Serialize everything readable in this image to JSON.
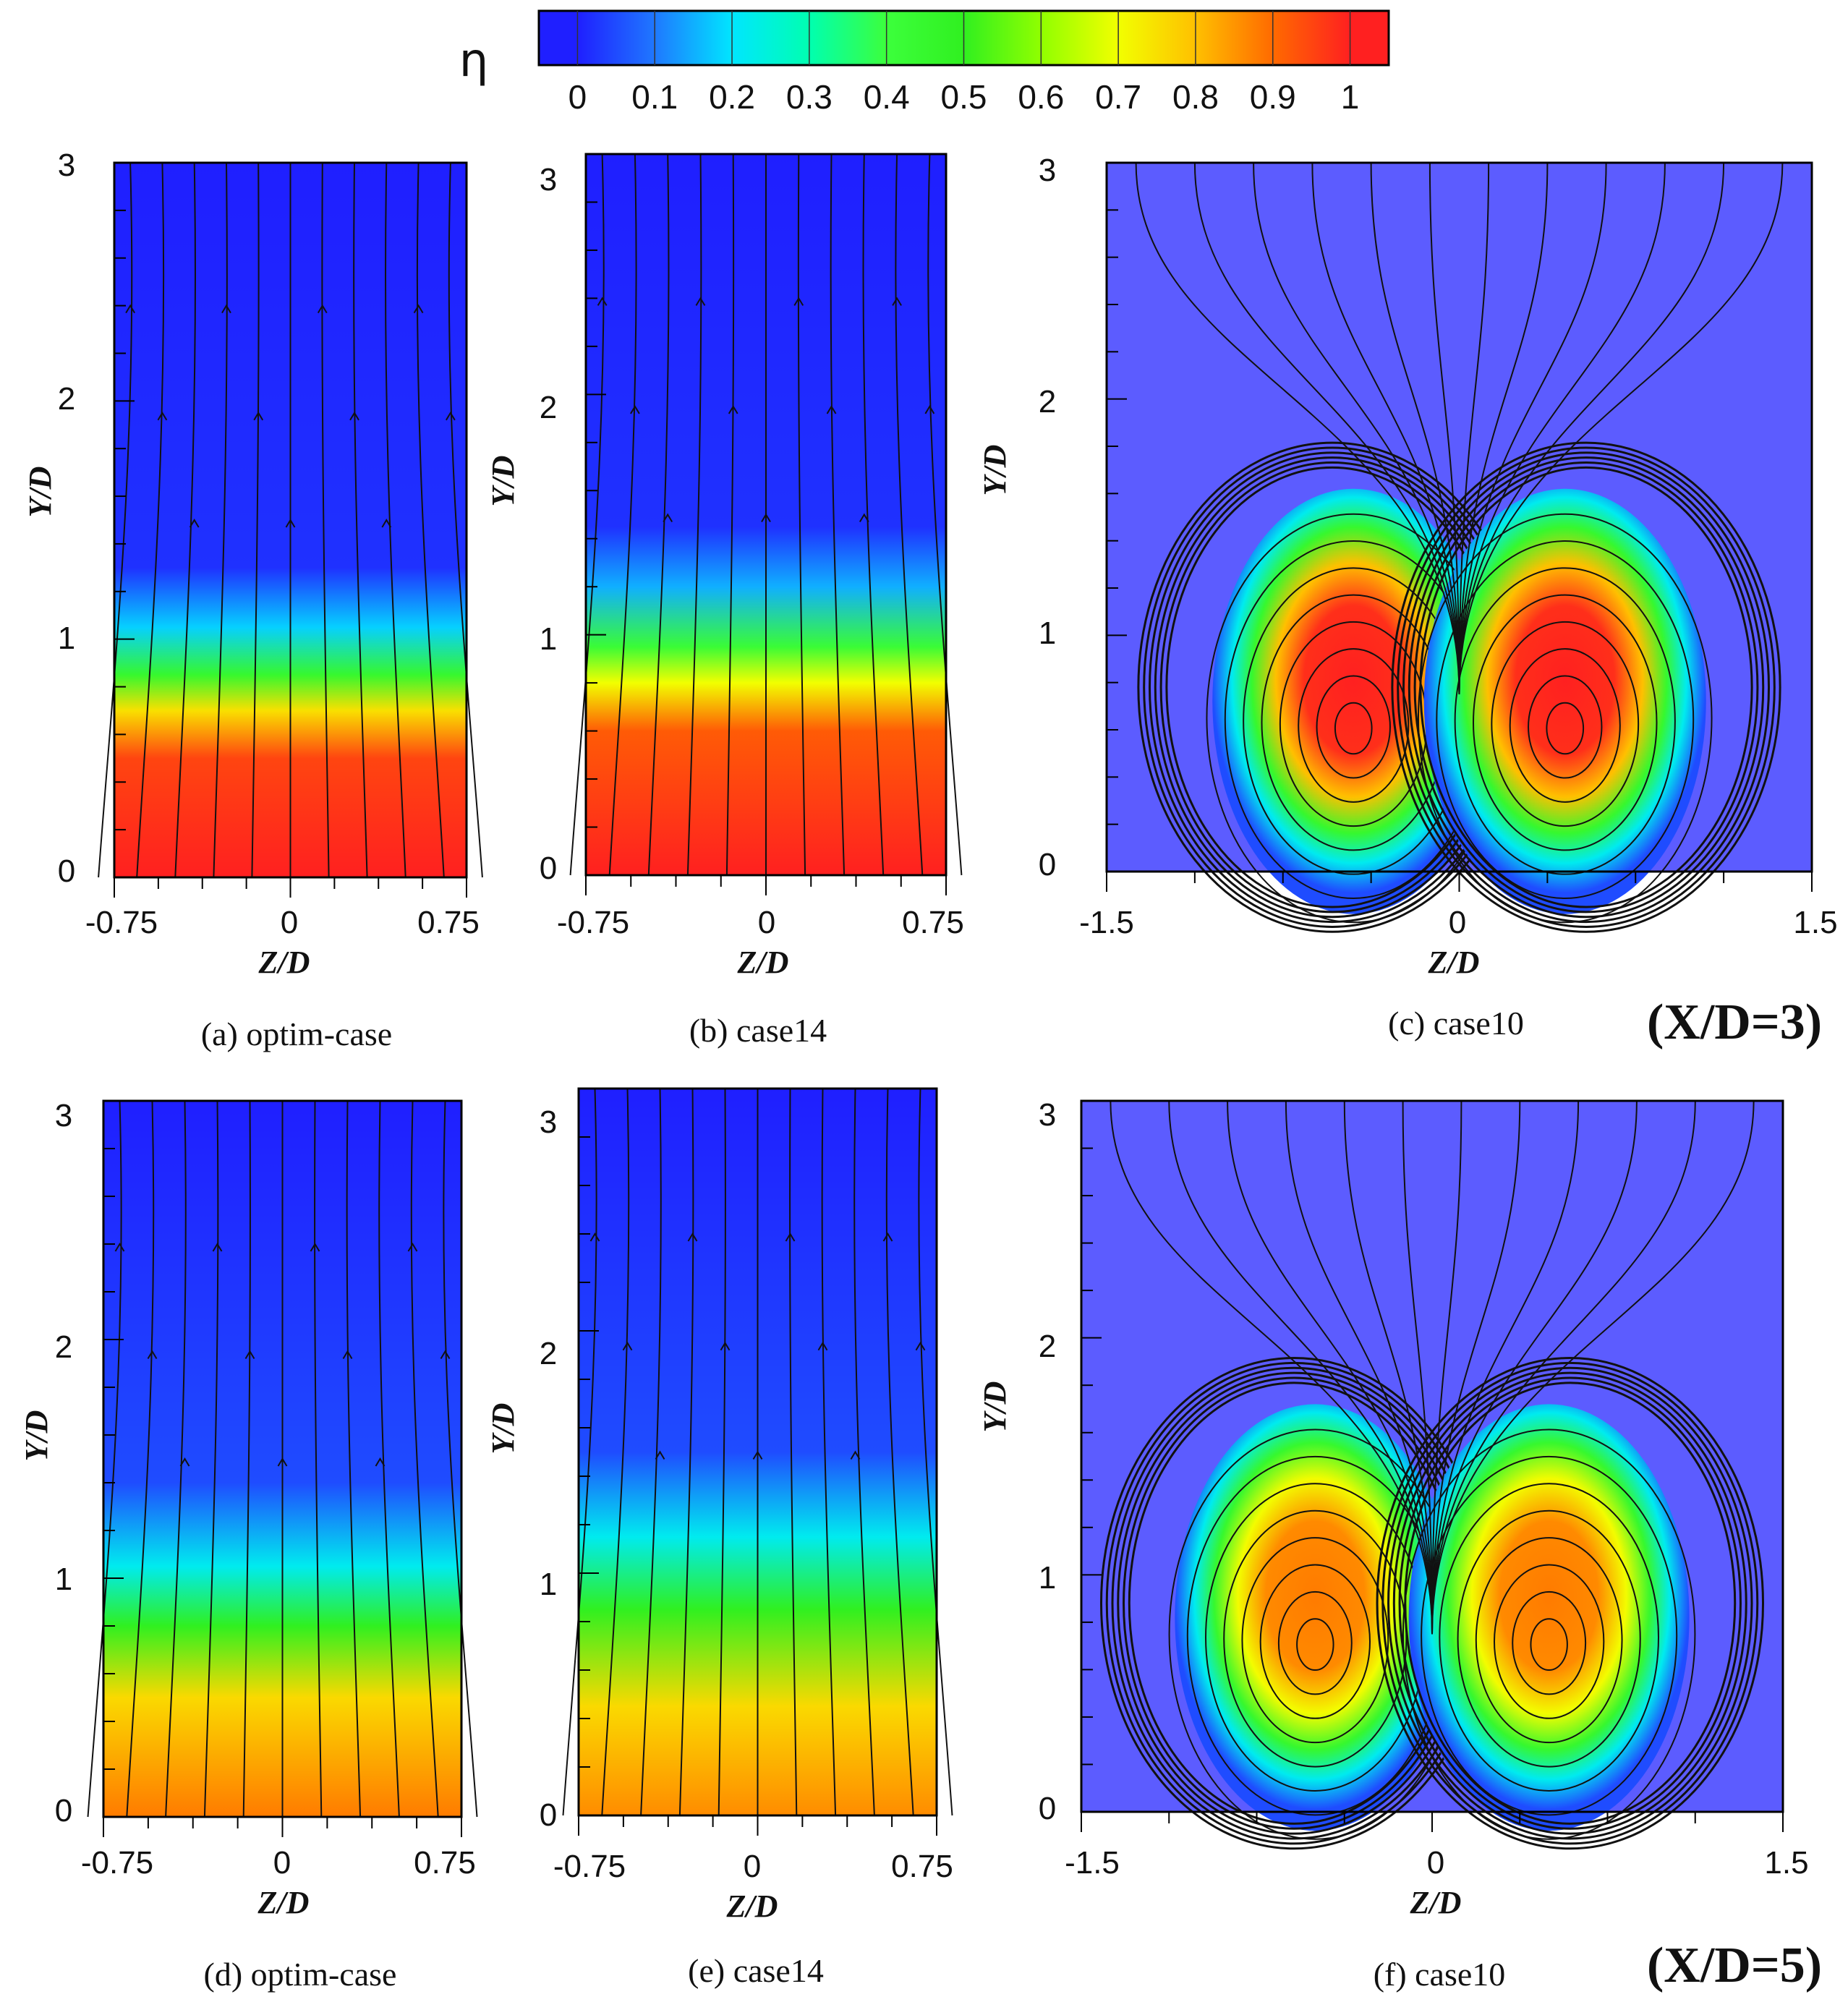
{
  "colorbar": {
    "label": "η",
    "ticks": [
      "0",
      "0.1",
      "0.2",
      "0.3",
      "0.4",
      "0.5",
      "0.6",
      "0.7",
      "0.8",
      "0.9",
      "1"
    ],
    "min": -0.05,
    "max": 1.05,
    "stops": [
      {
        "v": 0.0,
        "c": "#1f1fff"
      },
      {
        "v": 0.1,
        "c": "#1f78ff"
      },
      {
        "v": 0.2,
        "c": "#00e6ff"
      },
      {
        "v": 0.3,
        "c": "#00ffb0"
      },
      {
        "v": 0.4,
        "c": "#3cff3c"
      },
      {
        "v": 0.5,
        "c": "#30f020"
      },
      {
        "v": 0.6,
        "c": "#90ff00"
      },
      {
        "v": 0.7,
        "c": "#f2ff00"
      },
      {
        "v": 0.8,
        "c": "#ffc000"
      },
      {
        "v": 0.9,
        "c": "#ff6a00"
      },
      {
        "v": 1.0,
        "c": "#ff2020"
      }
    ]
  },
  "colors": {
    "background": "#5c5cff",
    "core": "#ff5a5a",
    "streamline": "#111111"
  },
  "row_tags": [
    "(X/D=3)",
    "(X/D=5)"
  ],
  "chart_data": [
    {
      "type": "contour",
      "caption": "(a) optim-case",
      "xlabel": "Z/D",
      "ylabel": "Y/D",
      "xlim": [
        -0.75,
        0.75
      ],
      "ylim": [
        0,
        3
      ],
      "xticks": [
        "-0.75",
        "0",
        "0.75"
      ],
      "yticks": [
        "0",
        "1",
        "2",
        "3"
      ],
      "pattern": "layered",
      "profile": [
        [
          0,
          1.0
        ],
        [
          0.5,
          0.95
        ],
        [
          0.7,
          0.75
        ],
        [
          0.85,
          0.45
        ],
        [
          1.05,
          0.18
        ],
        [
          1.3,
          0.02
        ],
        [
          3,
          0
        ]
      ]
    },
    {
      "type": "contour",
      "caption": "(b) case14",
      "xlabel": "Z/D",
      "ylabel": "Y/D",
      "xlim": [
        -0.75,
        0.75
      ],
      "ylim": [
        0,
        3
      ],
      "xticks": [
        "-0.75",
        "0",
        "0.75"
      ],
      "yticks": [
        "0",
        "1",
        "2",
        "3"
      ],
      "pattern": "layered",
      "profile": [
        [
          0,
          1.0
        ],
        [
          0.6,
          0.92
        ],
        [
          0.8,
          0.7
        ],
        [
          0.95,
          0.42
        ],
        [
          1.2,
          0.15
        ],
        [
          1.45,
          0.02
        ],
        [
          3,
          0
        ]
      ]
    },
    {
      "type": "contour",
      "caption": "(c) case10",
      "xlabel": "Z/D",
      "ylabel": "Y/D",
      "xlim": [
        -1.5,
        1.5
      ],
      "ylim": [
        0,
        3
      ],
      "xticks": [
        "-1.5",
        "0",
        "1.5"
      ],
      "yticks": [
        "0",
        "1",
        "2",
        "3"
      ],
      "pattern": "vortex",
      "vortex_centers": [
        [
          -0.45,
          0.6
        ],
        [
          0.45,
          0.6
        ]
      ],
      "core_eta": 1.0
    },
    {
      "type": "contour",
      "caption": "(d) optim-case",
      "xlabel": "Z/D",
      "ylabel": "Y/D",
      "xlim": [
        -0.75,
        0.75
      ],
      "ylim": [
        0,
        3
      ],
      "xticks": [
        "-0.75",
        "0",
        "0.75"
      ],
      "yticks": [
        "0",
        "1",
        "2",
        "3"
      ],
      "pattern": "layered",
      "profile": [
        [
          0,
          0.88
        ],
        [
          0.5,
          0.76
        ],
        [
          0.8,
          0.5
        ],
        [
          1.05,
          0.22
        ],
        [
          1.4,
          0.05
        ],
        [
          3,
          0
        ]
      ]
    },
    {
      "type": "contour",
      "caption": "(e) case14",
      "xlabel": "Z/D",
      "ylabel": "Y/D",
      "xlim": [
        -0.75,
        0.75
      ],
      "ylim": [
        0,
        3
      ],
      "xticks": [
        "-0.75",
        "0",
        "0.75"
      ],
      "yticks": [
        "0",
        "1",
        "2",
        "3"
      ],
      "pattern": "layered",
      "profile": [
        [
          0,
          0.86
        ],
        [
          0.45,
          0.76
        ],
        [
          0.85,
          0.5
        ],
        [
          1.15,
          0.22
        ],
        [
          1.5,
          0.05
        ],
        [
          3,
          0
        ]
      ]
    },
    {
      "type": "contour",
      "caption": "(f) case10",
      "xlabel": "Z/D",
      "ylabel": "Y/D",
      "xlim": [
        -1.5,
        1.5
      ],
      "ylim": [
        0,
        3
      ],
      "xticks": [
        "-1.5",
        "0",
        "1.5"
      ],
      "yticks": [
        "0",
        "1",
        "2",
        "3"
      ],
      "pattern": "vortex",
      "vortex_centers": [
        [
          -0.5,
          0.7
        ],
        [
          0.5,
          0.7
        ]
      ],
      "core_eta": 0.88
    }
  ]
}
